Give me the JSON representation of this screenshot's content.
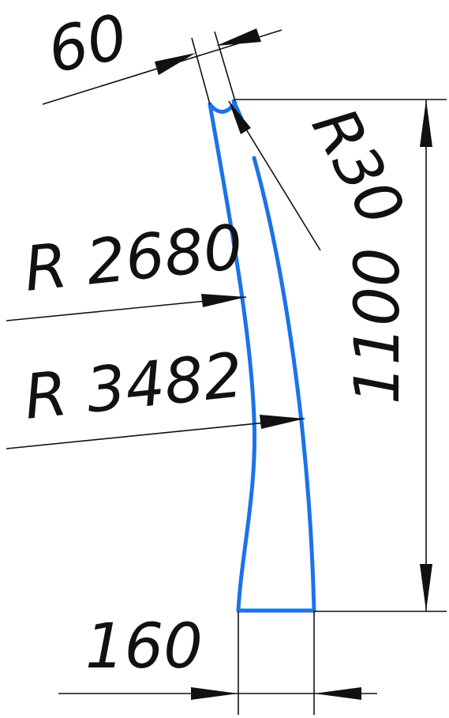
{
  "drawing": {
    "dimensions": {
      "top_width": "60",
      "fillet_radius": "R30",
      "inner_radius": "R 2680",
      "outer_radius": "R 3482",
      "height": "1100",
      "bottom_width": "160"
    },
    "colors": {
      "part_outline": "#1a73e8",
      "dimension_lines": "#111111"
    }
  }
}
